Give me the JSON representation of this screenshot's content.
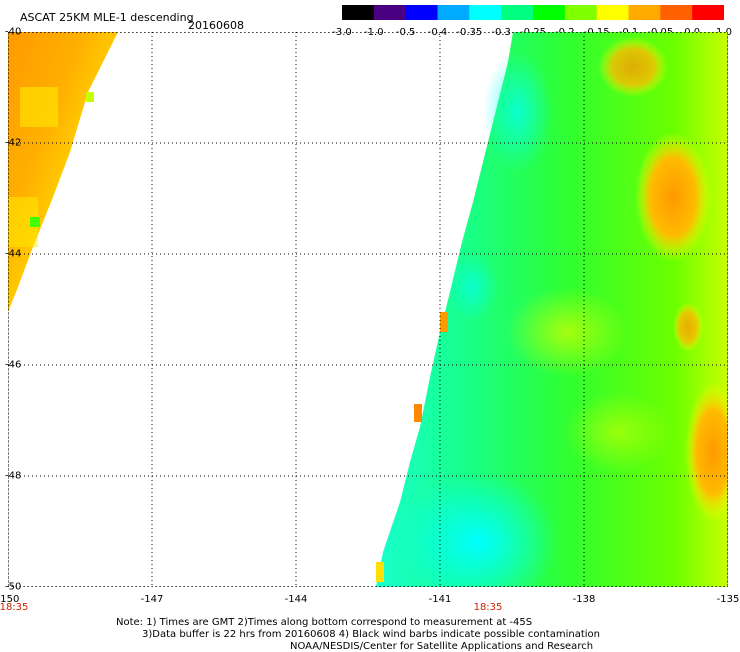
{
  "header": {
    "title": "ASCAT 25KM MLE-1 descending",
    "date": "20160608"
  },
  "colorbar": {
    "ticks": [
      "-3.0",
      "-1.0",
      "-0.5",
      "-0.4",
      "-0.35",
      "-0.3",
      "-0.25",
      "-0.2",
      "-0.15",
      "-0.1",
      "-0.05",
      "0.0",
      "1.0"
    ],
    "colors": [
      "#000000",
      "#4b0082",
      "#0000ff",
      "#00aaff",
      "#00ffff",
      "#00ff80",
      "#00ff00",
      "#80ff00",
      "#ffff00",
      "#ffaa00",
      "#ff6000",
      "#ff0000"
    ]
  },
  "map": {
    "lat_labels": [
      "-40",
      "-42",
      "-44",
      "-46",
      "-48",
      "-50"
    ],
    "lon_labels": [
      "-150",
      "-147",
      "-144",
      "-141",
      "-138",
      "-135"
    ],
    "lat_range": [
      -50,
      -40
    ],
    "lon_range": [
      -150,
      -135
    ],
    "time_labels": [
      "18:35",
      "18:35"
    ],
    "swaths": [
      {
        "name": "west-swath",
        "fill": "orange-yellow"
      },
      {
        "name": "east-swath",
        "fill": "green-cyan"
      }
    ]
  },
  "notes": {
    "line1": "Note: 1) Times are GMT 2)Times along bottom correspond to measurement at -45S",
    "line2": "3)Data buffer is 22 hrs from 20160608 4) Black wind barbs indicate possible contamination",
    "line3": "NOAA/NESDIS/Center for Satellite Applications and Research"
  }
}
